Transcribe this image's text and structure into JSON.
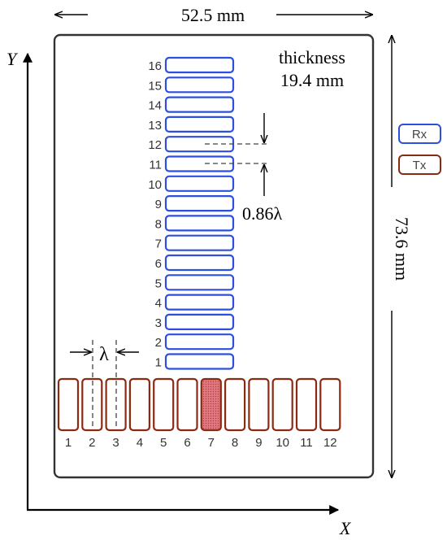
{
  "dimensions": {
    "width_label": "52.5 mm",
    "height_label": "73.6 mm"
  },
  "thickness": {
    "line1": "thickness",
    "line2": "19.4 mm"
  },
  "spacing": {
    "rx_label": "0.86λ",
    "tx_label": "λ"
  },
  "axes": {
    "x": "X",
    "y": "Y"
  },
  "legend": [
    {
      "label": "Rx",
      "kind": "rx"
    },
    {
      "label": "Tx",
      "kind": "tx"
    }
  ],
  "rx_labels": [
    "16",
    "15",
    "14",
    "13",
    "12",
    "11",
    "10",
    "9",
    "8",
    "7",
    "6",
    "5",
    "4",
    "3",
    "2",
    "1"
  ],
  "tx_labels": [
    "1",
    "2",
    "3",
    "4",
    "5",
    "6",
    "7",
    "8",
    "9",
    "10",
    "11",
    "12"
  ],
  "tx_highlighted": "7",
  "colors": {
    "rx": "#2c4fe0",
    "tx": "#8b2a12",
    "tx_highlight_fill": "#c8606a",
    "board": "#333333"
  }
}
